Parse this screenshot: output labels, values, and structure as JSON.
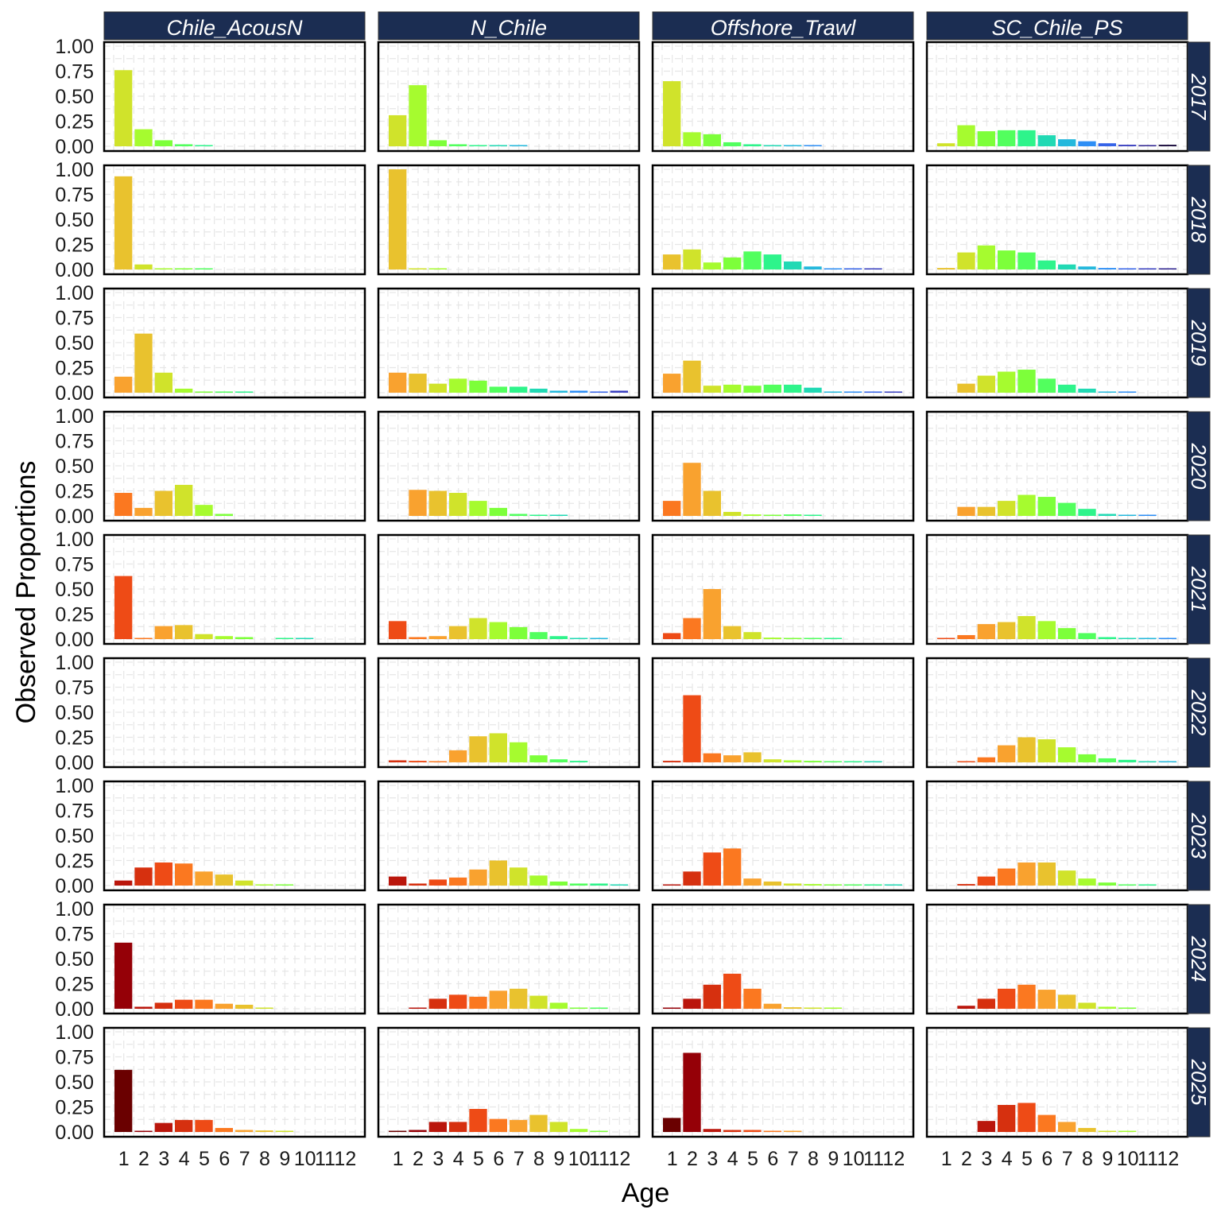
{
  "chart_data": {
    "type": "bar",
    "facet_layout": "grid",
    "xlabel": "Age",
    "ylabel": "Observed Proportions",
    "ylim": [
      0,
      1
    ],
    "yticks": [
      "0.00",
      "0.25",
      "0.50",
      "0.75",
      "1.00"
    ],
    "x": [
      "1",
      "2",
      "3",
      "4",
      "5",
      "6",
      "7",
      "8",
      "9",
      "10",
      "11",
      "12"
    ],
    "columns": [
      "Chile_AcousN",
      "N_Chile",
      "Offshore_Trawl",
      "SC_Chile_PS"
    ],
    "rows": [
      "2017",
      "2018",
      "2019",
      "2020",
      "2021",
      "2022",
      "2023",
      "2024",
      "2025"
    ],
    "color_by": "cohort (year - age)",
    "strip_color": "#1b2d52",
    "panels": {
      "Chile_AcousN": {
        "2017": [
          0.76,
          0.17,
          0.06,
          0.02,
          0.01,
          0,
          0,
          0,
          0,
          0,
          0,
          0
        ],
        "2018": [
          0.93,
          0.05,
          0.01,
          0.003,
          0.002,
          0,
          0,
          0,
          0,
          0,
          0,
          0
        ],
        "2019": [
          0.16,
          0.59,
          0.2,
          0.04,
          0.01,
          0.01,
          0.003,
          0,
          0,
          0,
          0,
          0
        ],
        "2020": [
          0.23,
          0.08,
          0.25,
          0.31,
          0.11,
          0.02,
          0,
          0,
          0,
          0,
          0,
          0
        ],
        "2021": [
          0.63,
          0.01,
          0.13,
          0.14,
          0.05,
          0.03,
          0.02,
          0,
          0.002,
          0.002,
          0,
          0
        ],
        "2022": [
          0,
          0,
          0,
          0,
          0,
          0,
          0,
          0,
          0,
          0,
          0,
          0
        ],
        "2023": [
          0.05,
          0.18,
          0.23,
          0.22,
          0.14,
          0.11,
          0.05,
          0.01,
          0.01,
          0,
          0,
          0
        ],
        "2024": [
          0.66,
          0.02,
          0.06,
          0.09,
          0.09,
          0.05,
          0.04,
          0.01,
          0,
          0,
          0,
          0
        ],
        "2025": [
          0.62,
          0.005,
          0.09,
          0.12,
          0.12,
          0.04,
          0.02,
          0.015,
          0.01,
          0,
          0,
          0
        ]
      },
      "N_Chile": {
        "2017": [
          0.31,
          0.61,
          0.06,
          0.02,
          0.01,
          0.003,
          0.002,
          0,
          0,
          0,
          0,
          0
        ],
        "2018": [
          1.0,
          0.005,
          0.002,
          0,
          0,
          0,
          0,
          0,
          0,
          0,
          0,
          0
        ],
        "2019": [
          0.2,
          0.19,
          0.09,
          0.14,
          0.12,
          0.06,
          0.06,
          0.04,
          0.02,
          0.02,
          0.01,
          0.02
        ],
        "2020": [
          0,
          0.26,
          0.25,
          0.23,
          0.15,
          0.08,
          0.02,
          0.01,
          0.005,
          0,
          0,
          0
        ],
        "2021": [
          0.18,
          0.02,
          0.03,
          0.13,
          0.21,
          0.17,
          0.12,
          0.07,
          0.03,
          0.01,
          0.01,
          0
        ],
        "2022": [
          0.02,
          0.015,
          0.01,
          0.12,
          0.26,
          0.29,
          0.2,
          0.07,
          0.03,
          0.015,
          0,
          0
        ],
        "2023": [
          0.09,
          0.02,
          0.06,
          0.08,
          0.16,
          0.25,
          0.18,
          0.1,
          0.04,
          0.02,
          0.02,
          0.005
        ],
        "2024": [
          0,
          0.01,
          0.1,
          0.14,
          0.12,
          0.18,
          0.2,
          0.13,
          0.06,
          0.01,
          0.01,
          0
        ],
        "2025": [
          0.01,
          0.02,
          0.1,
          0.1,
          0.23,
          0.13,
          0.12,
          0.17,
          0.1,
          0.03,
          0.01,
          0
        ]
      },
      "Offshore_Trawl": {
        "2017": [
          0.65,
          0.14,
          0.12,
          0.04,
          0.02,
          0.01,
          0.005,
          0.003,
          0,
          0,
          0,
          0
        ],
        "2018": [
          0.15,
          0.2,
          0.07,
          0.12,
          0.18,
          0.15,
          0.08,
          0.03,
          0.01,
          0.003,
          0.003,
          0
        ],
        "2019": [
          0.19,
          0.32,
          0.07,
          0.08,
          0.07,
          0.08,
          0.08,
          0.05,
          0.01,
          0.005,
          0.005,
          0.005
        ],
        "2020": [
          0.15,
          0.53,
          0.25,
          0.04,
          0.015,
          0.01,
          0.015,
          0.01,
          0,
          0,
          0,
          0
        ],
        "2021": [
          0.06,
          0.21,
          0.5,
          0.13,
          0.07,
          0.015,
          0.003,
          0.002,
          0.002,
          0,
          0,
          0
        ],
        "2022": [
          0.015,
          0.67,
          0.09,
          0.07,
          0.1,
          0.03,
          0.02,
          0.015,
          0.01,
          0.01,
          0.01,
          0
        ],
        "2023": [
          0.01,
          0.14,
          0.33,
          0.37,
          0.07,
          0.04,
          0.02,
          0.015,
          0.01,
          0.01,
          0.003,
          0.003
        ],
        "2024": [
          0.01,
          0.1,
          0.24,
          0.35,
          0.2,
          0.05,
          0.015,
          0.005,
          0.002,
          0,
          0,
          0
        ],
        "2025": [
          0.14,
          0.79,
          0.03,
          0.02,
          0.02,
          0.005,
          0.005,
          0,
          0,
          0,
          0,
          0
        ]
      },
      "SC_Chile_PS": {
        "2017": [
          0.03,
          0.21,
          0.15,
          0.16,
          0.16,
          0.11,
          0.07,
          0.05,
          0.03,
          0.015,
          0.01,
          0.015
        ],
        "2018": [
          0.015,
          0.17,
          0.24,
          0.19,
          0.17,
          0.09,
          0.05,
          0.03,
          0.015,
          0.01,
          0.01,
          0.005
        ],
        "2019": [
          0,
          0.09,
          0.17,
          0.21,
          0.23,
          0.14,
          0.08,
          0.04,
          0.01,
          0.003,
          0,
          0
        ],
        "2020": [
          0,
          0.09,
          0.09,
          0.15,
          0.21,
          0.19,
          0.13,
          0.07,
          0.02,
          0.005,
          0.005,
          0
        ],
        "2021": [
          0.003,
          0.04,
          0.15,
          0.17,
          0.23,
          0.18,
          0.11,
          0.06,
          0.02,
          0.01,
          0.005,
          0.003
        ],
        "2022": [
          0,
          0.005,
          0.05,
          0.17,
          0.25,
          0.23,
          0.15,
          0.08,
          0.04,
          0.025,
          0.005,
          0.005
        ],
        "2023": [
          0,
          0.015,
          0.09,
          0.17,
          0.23,
          0.23,
          0.15,
          0.07,
          0.03,
          0.005,
          0.002,
          0
        ],
        "2024": [
          0,
          0.03,
          0.1,
          0.2,
          0.24,
          0.19,
          0.14,
          0.06,
          0.02,
          0.01,
          0,
          0
        ],
        "2025": [
          0,
          0,
          0.11,
          0.27,
          0.29,
          0.17,
          0.1,
          0.04,
          0.01,
          0.005,
          0,
          0
        ]
      }
    }
  }
}
